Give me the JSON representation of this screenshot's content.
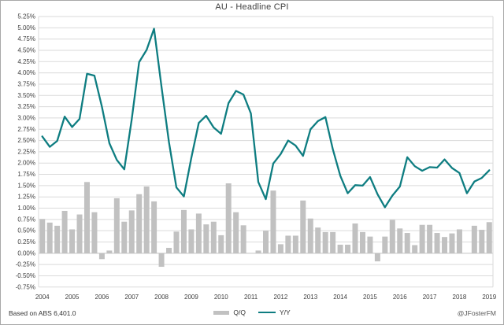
{
  "title": "AU - Headline CPI",
  "footer": {
    "source": "Based on ABS 6,401.0",
    "handle": "@JFosterFM"
  },
  "legend": {
    "items": [
      "Q/Q",
      "Y/Y"
    ]
  },
  "colors": {
    "bar": "#c1c1c1",
    "line": "#0e7d81",
    "grid": "#dadada",
    "zero_axis": "#c2c2c2",
    "tick_text": "#3f3f3f",
    "border": "#a8a8a8"
  },
  "chart_data": {
    "type": "combo bar+line",
    "title": "AU - Headline CPI",
    "xlabel": "",
    "ylabel": "",
    "ylim": [
      -0.75,
      5.25
    ],
    "ytick_step": 0.25,
    "grid": true,
    "legend_position": "bottom",
    "y_ticks": [
      "5.25%",
      "5.00%",
      "4.75%",
      "4.50%",
      "4.25%",
      "4.00%",
      "3.75%",
      "3.50%",
      "3.25%",
      "3.00%",
      "2.75%",
      "2.50%",
      "2.25%",
      "2.00%",
      "1.75%",
      "1.50%",
      "1.25%",
      "1.00%",
      "0.75%",
      "0.50%",
      "0.25%",
      "0.00%",
      "-0.25%",
      "-0.50%",
      "-0.75%"
    ],
    "x_tick_labels": [
      "2004",
      "2005",
      "2006",
      "2007",
      "2008",
      "2009",
      "2010",
      "2011",
      "2012",
      "2013",
      "2014",
      "2015",
      "2016",
      "2017",
      "2018",
      "2019"
    ],
    "x_tick_every": 4,
    "categories": [
      "2004 Q4",
      "2005 Q1",
      "2005 Q2",
      "2005 Q3",
      "2005 Q4",
      "2006 Q1",
      "2006 Q2",
      "2006 Q3",
      "2006 Q4",
      "2007 Q1",
      "2007 Q2",
      "2007 Q3",
      "2007 Q4",
      "2008 Q1",
      "2008 Q2",
      "2008 Q3",
      "2008 Q4",
      "2009 Q1",
      "2009 Q2",
      "2009 Q3",
      "2009 Q4",
      "2010 Q1",
      "2010 Q2",
      "2010 Q3",
      "2010 Q4",
      "2011 Q1",
      "2011 Q2",
      "2011 Q3",
      "2011 Q4",
      "2012 Q1",
      "2012 Q2",
      "2012 Q3",
      "2012 Q4",
      "2013 Q1",
      "2013 Q2",
      "2013 Q3",
      "2013 Q4",
      "2014 Q1",
      "2014 Q2",
      "2014 Q3",
      "2014 Q4",
      "2015 Q1",
      "2015 Q2",
      "2015 Q3",
      "2015 Q4",
      "2016 Q1",
      "2016 Q2",
      "2016 Q3",
      "2016 Q4",
      "2017 Q1",
      "2017 Q2",
      "2017 Q3",
      "2017 Q4",
      "2018 Q1",
      "2018 Q2",
      "2018 Q3",
      "2018 Q4",
      "2019 Q1",
      "2019 Q2",
      "2019 Q3",
      "2019 Q4"
    ],
    "series": [
      {
        "name": "Q/Q",
        "type": "bar",
        "values": [
          0.76,
          0.68,
          0.61,
          0.94,
          0.53,
          0.86,
          1.58,
          0.91,
          -0.13,
          0.06,
          1.22,
          0.7,
          0.95,
          1.31,
          1.48,
          1.15,
          -0.3,
          0.12,
          0.48,
          0.96,
          0.53,
          0.88,
          0.64,
          0.7,
          0.4,
          1.55,
          0.91,
          0.62,
          0.0,
          0.06,
          0.5,
          1.39,
          0.2,
          0.39,
          0.39,
          1.17,
          0.77,
          0.57,
          0.47,
          0.47,
          0.19,
          0.19,
          0.66,
          0.47,
          0.37,
          -0.18,
          0.37,
          0.74,
          0.55,
          0.45,
          0.18,
          0.63,
          0.63,
          0.45,
          0.36,
          0.44,
          0.53,
          0.0,
          0.61,
          0.52,
          0.69
        ]
      },
      {
        "name": "Y/Y",
        "type": "line",
        "values": [
          2.59,
          2.36,
          2.49,
          3.03,
          2.8,
          2.98,
          3.98,
          3.94,
          3.25,
          2.44,
          2.07,
          1.86,
          2.96,
          4.24,
          4.51,
          4.98,
          3.69,
          2.47,
          1.46,
          1.26,
          2.11,
          2.89,
          3.05,
          2.79,
          2.65,
          3.33,
          3.6,
          3.52,
          3.1,
          1.58,
          1.2,
          1.99,
          2.2,
          2.5,
          2.39,
          2.16,
          2.75,
          2.93,
          3.02,
          2.31,
          1.72,
          1.33,
          1.51,
          1.5,
          1.69,
          1.31,
          1.02,
          1.28,
          1.48,
          2.13,
          1.93,
          1.83,
          1.91,
          1.9,
          2.08,
          1.89,
          1.78,
          1.33,
          1.59,
          1.67,
          1.84
        ]
      }
    ]
  }
}
